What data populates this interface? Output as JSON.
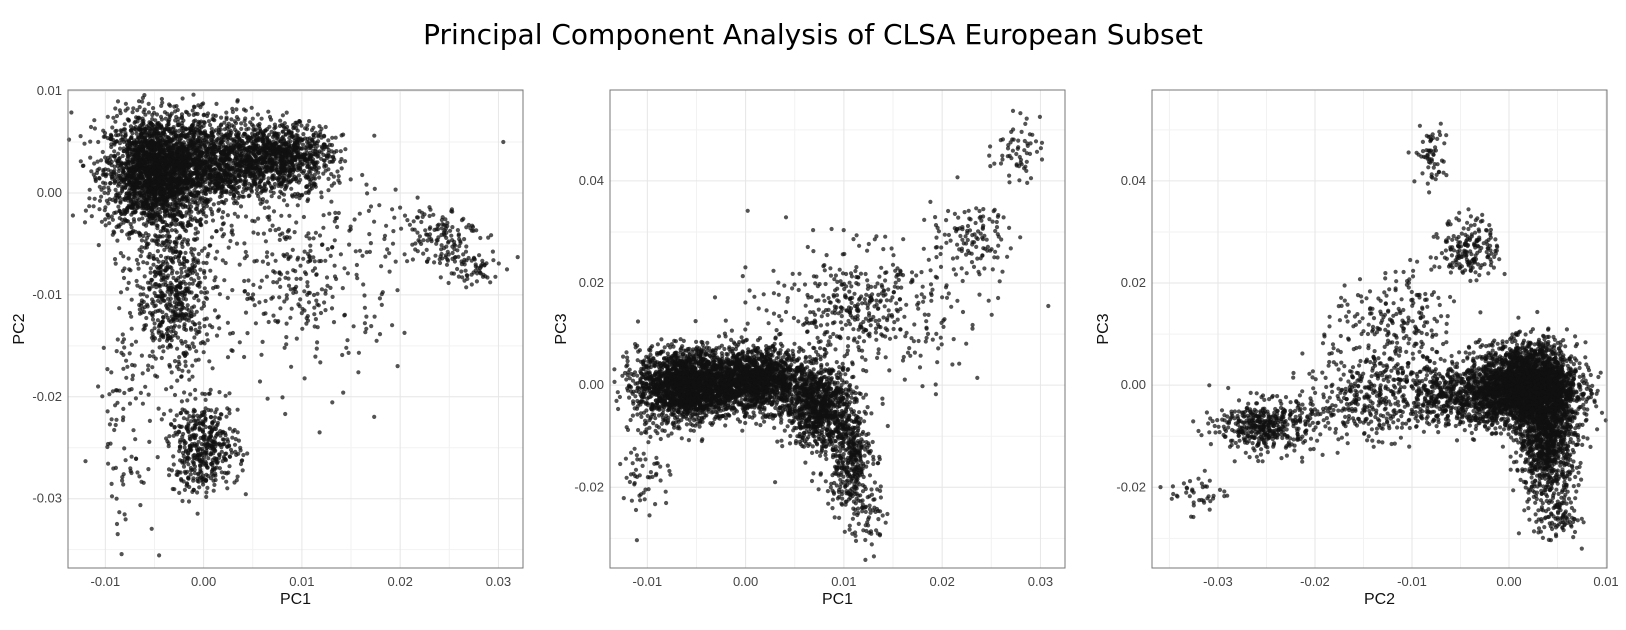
{
  "title": "Principal Component Analysis of CLSA European Subset",
  "colors": {
    "point": "#111111",
    "grid": "#e6e6e6",
    "frame": "#777777"
  },
  "chart_data": [
    {
      "type": "scatter",
      "xlabel": "PC1",
      "ylabel": "PC2",
      "xlim": [
        -0.0138,
        0.0325
      ],
      "ylim": [
        -0.0368,
        0.0101
      ],
      "xticks": [
        -0.01,
        0.0,
        0.01,
        0.02,
        0.03
      ],
      "xtick_labels": [
        "-0.01",
        "0.00",
        "0.01",
        "0.02",
        "0.03"
      ],
      "yticks": [
        -0.03,
        -0.02,
        -0.01,
        0.0,
        0.01
      ],
      "ytick_labels": [
        "-0.03",
        "-0.02",
        "-0.01",
        "0.00",
        "0.01"
      ],
      "grid": true,
      "clusters": [
        {
          "x": -0.005,
          "y": 0.002,
          "sx": 0.0025,
          "sy": 0.0028,
          "n": 2200
        },
        {
          "x": 0.001,
          "y": 0.003,
          "sx": 0.003,
          "sy": 0.0022,
          "n": 1200
        },
        {
          "x": 0.008,
          "y": 0.0035,
          "sx": 0.0025,
          "sy": 0.0016,
          "n": 900
        },
        {
          "x": -0.003,
          "y": -0.01,
          "sx": 0.002,
          "sy": 0.004,
          "n": 600
        },
        {
          "x": 0.0,
          "y": -0.025,
          "sx": 0.0018,
          "sy": 0.0022,
          "n": 450
        },
        {
          "x": 0.024,
          "y": -0.004,
          "sx": 0.002,
          "sy": 0.0015,
          "n": 130
        },
        {
          "x": 0.027,
          "y": -0.0075,
          "sx": 0.0015,
          "sy": 0.001,
          "n": 60
        },
        {
          "x": 0.01,
          "y": -0.008,
          "sx": 0.005,
          "sy": 0.005,
          "n": 350
        },
        {
          "x": -0.008,
          "y": -0.022,
          "sx": 0.0015,
          "sy": 0.006,
          "n": 90
        }
      ],
      "points": [
        [
          0.0305,
          0.005
        ],
        [
          0.0118,
          -0.0235
        ]
      ]
    },
    {
      "type": "scatter",
      "xlabel": "PC1",
      "ylabel": "PC3",
      "xlim": [
        -0.0138,
        0.0325
      ],
      "ylim": [
        -0.0358,
        0.0578
      ],
      "xticks": [
        -0.01,
        0.0,
        0.01,
        0.02,
        0.03
      ],
      "xtick_labels": [
        "-0.01",
        "0.00",
        "0.01",
        "0.02",
        "0.03"
      ],
      "yticks": [
        -0.02,
        0.0,
        0.02,
        0.04
      ],
      "ytick_labels": [
        "-0.02",
        "0.00",
        "0.02",
        "0.04"
      ],
      "grid": true,
      "clusters": [
        {
          "x": -0.006,
          "y": 0.0,
          "sx": 0.0025,
          "sy": 0.0035,
          "n": 2000
        },
        {
          "x": 0.001,
          "y": 0.001,
          "sx": 0.0025,
          "sy": 0.003,
          "n": 1500
        },
        {
          "x": 0.0075,
          "y": -0.004,
          "sx": 0.0018,
          "sy": 0.004,
          "n": 900
        },
        {
          "x": 0.0105,
          "y": -0.014,
          "sx": 0.0012,
          "sy": 0.005,
          "n": 400
        },
        {
          "x": 0.0125,
          "y": -0.026,
          "sx": 0.0009,
          "sy": 0.003,
          "n": 60
        },
        {
          "x": 0.012,
          "y": 0.015,
          "sx": 0.005,
          "sy": 0.006,
          "n": 450
        },
        {
          "x": 0.023,
          "y": 0.029,
          "sx": 0.002,
          "sy": 0.003,
          "n": 110
        },
        {
          "x": 0.0275,
          "y": 0.046,
          "sx": 0.0012,
          "sy": 0.003,
          "n": 60
        },
        {
          "x": -0.01,
          "y": -0.015,
          "sx": 0.0012,
          "sy": 0.006,
          "n": 70
        }
      ],
      "points": [
        [
          0.0308,
          0.0155
        ],
        [
          0.018,
          -0.0002
        ],
        [
          0.0195,
          0.0045
        ],
        [
          0.003,
          -0.019
        ]
      ]
    },
    {
      "type": "scatter",
      "xlabel": "PC2",
      "ylabel": "PC3",
      "xlim": [
        -0.0368,
        0.0101
      ],
      "ylim": [
        -0.0358,
        0.0578
      ],
      "xticks": [
        -0.03,
        -0.02,
        -0.01,
        0.0,
        0.01
      ],
      "xtick_labels": [
        "-0.03",
        "-0.02",
        "-0.01",
        "0.00",
        "0.01"
      ],
      "yticks": [
        -0.02,
        0.0,
        0.02,
        0.04
      ],
      "ytick_labels": [
        "-0.02",
        "0.00",
        "0.02",
        "0.04"
      ],
      "grid": true,
      "clusters": [
        {
          "x": 0.002,
          "y": 0.0,
          "sx": 0.0025,
          "sy": 0.004,
          "n": 2500
        },
        {
          "x": 0.004,
          "y": -0.01,
          "sx": 0.0015,
          "sy": 0.006,
          "n": 1100
        },
        {
          "x": -0.004,
          "y": -0.002,
          "sx": 0.004,
          "sy": 0.003,
          "n": 900
        },
        {
          "x": -0.025,
          "y": -0.008,
          "sx": 0.0025,
          "sy": 0.0025,
          "n": 450
        },
        {
          "x": -0.015,
          "y": -0.003,
          "sx": 0.003,
          "sy": 0.004,
          "n": 300
        },
        {
          "x": -0.004,
          "y": 0.027,
          "sx": 0.0015,
          "sy": 0.003,
          "n": 180
        },
        {
          "x": -0.008,
          "y": 0.045,
          "sx": 0.0008,
          "sy": 0.003,
          "n": 60
        },
        {
          "x": -0.012,
          "y": 0.01,
          "sx": 0.003,
          "sy": 0.006,
          "n": 250
        },
        {
          "x": 0.005,
          "y": -0.026,
          "sx": 0.0012,
          "sy": 0.002,
          "n": 80
        },
        {
          "x": -0.032,
          "y": -0.021,
          "sx": 0.0015,
          "sy": 0.002,
          "n": 40
        }
      ],
      "points": [
        [
          0.0075,
          -0.032
        ],
        [
          -0.0185,
          0.0115
        ]
      ]
    }
  ]
}
